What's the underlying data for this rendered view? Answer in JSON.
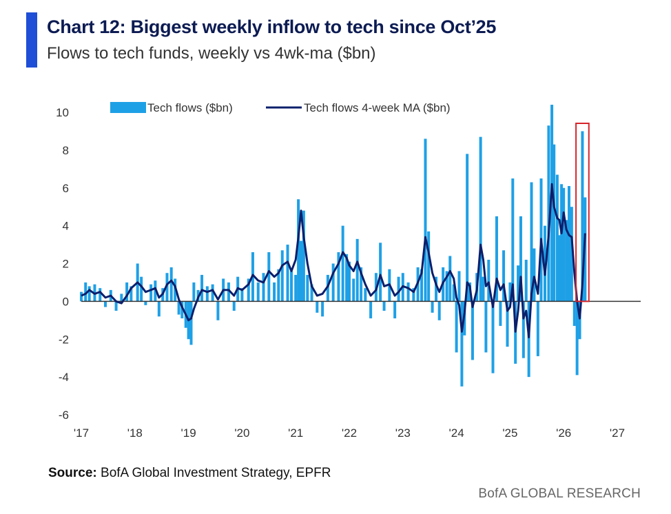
{
  "header": {
    "title": "Chart 12: Biggest weekly inflow to tech since Oct’25",
    "subtitle": "Flows to tech funds, weekly vs 4wk-ma ($bn)"
  },
  "footer": {
    "source_label": "Source:",
    "source_text": "BofA Global Investment Strategy, EPFR",
    "brand": "BofA GLOBAL RESEARCH"
  },
  "colors": {
    "bars": "#1ea0e6",
    "ma_line": "#0b1f6b",
    "highlight": "#d8232a",
    "accent": "#1f4fd6"
  },
  "chart_data": {
    "type": "bar",
    "title": "Chart 12: Biggest weekly inflow to tech since Oct’25",
    "subtitle": "Flows to tech funds, weekly vs 4wk-ma ($bn)",
    "xlabel": "",
    "ylabel": "",
    "ylim": [
      -6,
      10
    ],
    "yticks": [
      10,
      8,
      6,
      4,
      2,
      0,
      -2,
      -4,
      -6
    ],
    "xlim": [
      2017,
      2027
    ],
    "xticks": [
      "'17",
      "'18",
      "'19",
      "'20",
      "'21",
      "'22",
      "'23",
      "'24",
      "'25",
      "'26",
      "'27"
    ],
    "legend": {
      "position": "top-left",
      "entries": [
        "Tech flows ($bn)",
        "Tech flows 4-week MA ($bn)"
      ]
    },
    "grid": false,
    "highlight": {
      "x_start": 2026.23,
      "x_end": 2026.47,
      "label": "Biggest weekly inflow"
    },
    "series": [
      {
        "name": "Tech flows ($bn)",
        "type": "bar",
        "points": [
          [
            2017.0,
            0.5
          ],
          [
            2017.08,
            1.0
          ],
          [
            2017.15,
            0.8
          ],
          [
            2017.25,
            0.9
          ],
          [
            2017.35,
            0.7
          ],
          [
            2017.45,
            -0.3
          ],
          [
            2017.55,
            0.6
          ],
          [
            2017.65,
            -0.5
          ],
          [
            2017.75,
            0.4
          ],
          [
            2017.85,
            1.0
          ],
          [
            2017.93,
            0.8
          ],
          [
            2018.05,
            2.0
          ],
          [
            2018.12,
            1.3
          ],
          [
            2018.2,
            -0.2
          ],
          [
            2018.3,
            0.9
          ],
          [
            2018.38,
            1.1
          ],
          [
            2018.45,
            -0.8
          ],
          [
            2018.52,
            0.7
          ],
          [
            2018.6,
            1.5
          ],
          [
            2018.68,
            1.8
          ],
          [
            2018.75,
            1.2
          ],
          [
            2018.82,
            -0.7
          ],
          [
            2018.88,
            -0.9
          ],
          [
            2018.95,
            -1.4
          ],
          [
            2019.0,
            -2.0
          ],
          [
            2019.05,
            -2.3
          ],
          [
            2019.1,
            1.0
          ],
          [
            2019.18,
            0.6
          ],
          [
            2019.25,
            1.4
          ],
          [
            2019.35,
            0.8
          ],
          [
            2019.45,
            0.9
          ],
          [
            2019.55,
            -1.0
          ],
          [
            2019.65,
            1.2
          ],
          [
            2019.75,
            1.0
          ],
          [
            2019.85,
            -0.5
          ],
          [
            2019.92,
            1.3
          ],
          [
            2020.0,
            0.7
          ],
          [
            2020.12,
            1.2
          ],
          [
            2020.2,
            2.6
          ],
          [
            2020.3,
            1.0
          ],
          [
            2020.4,
            1.5
          ],
          [
            2020.5,
            2.6
          ],
          [
            2020.6,
            1.0
          ],
          [
            2020.68,
            1.7
          ],
          [
            2020.75,
            2.7
          ],
          [
            2020.85,
            3.0
          ],
          [
            2020.92,
            1.6
          ],
          [
            2021.0,
            1.4
          ],
          [
            2021.05,
            5.4
          ],
          [
            2021.1,
            3.2
          ],
          [
            2021.15,
            4.8
          ],
          [
            2021.22,
            1.4
          ],
          [
            2021.3,
            0.9
          ],
          [
            2021.4,
            -0.6
          ],
          [
            2021.5,
            -0.8
          ],
          [
            2021.6,
            1.4
          ],
          [
            2021.7,
            2.0
          ],
          [
            2021.8,
            2.6
          ],
          [
            2021.88,
            4.0
          ],
          [
            2021.95,
            2.5
          ],
          [
            2022.0,
            2.1
          ],
          [
            2022.08,
            1.2
          ],
          [
            2022.15,
            3.3
          ],
          [
            2022.22,
            1.8
          ],
          [
            2022.3,
            0.7
          ],
          [
            2022.4,
            -0.9
          ],
          [
            2022.5,
            1.5
          ],
          [
            2022.58,
            3.1
          ],
          [
            2022.65,
            -0.5
          ],
          [
            2022.75,
            1.7
          ],
          [
            2022.85,
            -0.9
          ],
          [
            2022.92,
            1.3
          ],
          [
            2023.0,
            1.5
          ],
          [
            2023.1,
            1.0
          ],
          [
            2023.2,
            0.7
          ],
          [
            2023.28,
            1.8
          ],
          [
            2023.35,
            1.7
          ],
          [
            2023.42,
            8.6
          ],
          [
            2023.48,
            3.7
          ],
          [
            2023.55,
            -0.6
          ],
          [
            2023.62,
            1.3
          ],
          [
            2023.68,
            -1.0
          ],
          [
            2023.75,
            1.8
          ],
          [
            2023.82,
            1.6
          ],
          [
            2023.88,
            2.4
          ],
          [
            2023.95,
            0.9
          ],
          [
            2024.0,
            -2.7
          ],
          [
            2024.05,
            1.6
          ],
          [
            2024.1,
            -4.5
          ],
          [
            2024.15,
            -1.8
          ],
          [
            2024.2,
            7.8
          ],
          [
            2024.25,
            1.0
          ],
          [
            2024.3,
            -3.1
          ],
          [
            2024.38,
            1.5
          ],
          [
            2024.45,
            8.7
          ],
          [
            2024.5,
            1.3
          ],
          [
            2024.55,
            -2.7
          ],
          [
            2024.6,
            2.2
          ],
          [
            2024.68,
            -3.8
          ],
          [
            2024.75,
            4.5
          ],
          [
            2024.82,
            -1.3
          ],
          [
            2024.88,
            2.7
          ],
          [
            2024.95,
            -2.4
          ],
          [
            2025.0,
            1.0
          ],
          [
            2025.05,
            6.5
          ],
          [
            2025.1,
            -3.3
          ],
          [
            2025.15,
            1.9
          ],
          [
            2025.2,
            4.5
          ],
          [
            2025.25,
            -3.0
          ],
          [
            2025.3,
            2.2
          ],
          [
            2025.35,
            -4.0
          ],
          [
            2025.4,
            6.3
          ],
          [
            2025.45,
            2.8
          ],
          [
            2025.52,
            -2.9
          ],
          [
            2025.58,
            6.5
          ],
          [
            2025.65,
            4.0
          ],
          [
            2025.72,
            9.3
          ],
          [
            2025.78,
            10.4
          ],
          [
            2025.82,
            8.3
          ],
          [
            2025.88,
            6.7
          ],
          [
            2025.92,
            3.5
          ],
          [
            2025.96,
            6.2
          ],
          [
            2026.0,
            6.0
          ],
          [
            2026.05,
            4.3
          ],
          [
            2026.1,
            6.1
          ],
          [
            2026.15,
            5.0
          ],
          [
            2026.2,
            -1.3
          ],
          [
            2026.25,
            -3.9
          ],
          [
            2026.3,
            -2.0
          ],
          [
            2026.35,
            9.0
          ],
          [
            2026.4,
            5.5
          ]
        ]
      },
      {
        "name": "Tech flows 4-week MA ($bn)",
        "type": "line",
        "points": [
          [
            2017.0,
            0.3
          ],
          [
            2017.08,
            0.4
          ],
          [
            2017.15,
            0.6
          ],
          [
            2017.25,
            0.4
          ],
          [
            2017.35,
            0.5
          ],
          [
            2017.45,
            0.2
          ],
          [
            2017.55,
            0.3
          ],
          [
            2017.65,
            0.0
          ],
          [
            2017.75,
            -0.1
          ],
          [
            2017.85,
            0.3
          ],
          [
            2017.93,
            0.7
          ],
          [
            2018.05,
            1.0
          ],
          [
            2018.12,
            0.8
          ],
          [
            2018.2,
            0.5
          ],
          [
            2018.3,
            0.6
          ],
          [
            2018.38,
            0.7
          ],
          [
            2018.45,
            0.2
          ],
          [
            2018.52,
            0.4
          ],
          [
            2018.6,
            0.9
          ],
          [
            2018.68,
            1.1
          ],
          [
            2018.75,
            0.8
          ],
          [
            2018.82,
            0.1
          ],
          [
            2018.88,
            -0.3
          ],
          [
            2018.95,
            -0.7
          ],
          [
            2019.0,
            -1.0
          ],
          [
            2019.05,
            -0.9
          ],
          [
            2019.1,
            -0.4
          ],
          [
            2019.18,
            0.2
          ],
          [
            2019.25,
            0.6
          ],
          [
            2019.35,
            0.5
          ],
          [
            2019.45,
            0.6
          ],
          [
            2019.55,
            0.1
          ],
          [
            2019.65,
            0.6
          ],
          [
            2019.75,
            0.6
          ],
          [
            2019.85,
            0.3
          ],
          [
            2019.92,
            0.7
          ],
          [
            2020.0,
            0.6
          ],
          [
            2020.12,
            0.9
          ],
          [
            2020.2,
            1.4
          ],
          [
            2020.3,
            1.1
          ],
          [
            2020.4,
            1.0
          ],
          [
            2020.5,
            1.6
          ],
          [
            2020.6,
            1.3
          ],
          [
            2020.68,
            1.5
          ],
          [
            2020.75,
            1.9
          ],
          [
            2020.85,
            2.1
          ],
          [
            2020.92,
            1.6
          ],
          [
            2021.0,
            2.2
          ],
          [
            2021.05,
            3.4
          ],
          [
            2021.1,
            4.8
          ],
          [
            2021.15,
            3.4
          ],
          [
            2021.22,
            2.0
          ],
          [
            2021.3,
            0.8
          ],
          [
            2021.4,
            0.3
          ],
          [
            2021.5,
            0.4
          ],
          [
            2021.6,
            0.8
          ],
          [
            2021.7,
            1.5
          ],
          [
            2021.8,
            2.0
          ],
          [
            2021.88,
            2.6
          ],
          [
            2021.95,
            2.3
          ],
          [
            2022.0,
            1.9
          ],
          [
            2022.08,
            1.6
          ],
          [
            2022.15,
            2.1
          ],
          [
            2022.22,
            1.5
          ],
          [
            2022.3,
            0.9
          ],
          [
            2022.4,
            0.3
          ],
          [
            2022.5,
            0.6
          ],
          [
            2022.58,
            1.4
          ],
          [
            2022.65,
            0.8
          ],
          [
            2022.75,
            0.9
          ],
          [
            2022.85,
            0.3
          ],
          [
            2022.92,
            0.5
          ],
          [
            2023.0,
            0.8
          ],
          [
            2023.1,
            0.7
          ],
          [
            2023.2,
            0.5
          ],
          [
            2023.28,
            1.0
          ],
          [
            2023.35,
            1.5
          ],
          [
            2023.42,
            3.4
          ],
          [
            2023.48,
            2.6
          ],
          [
            2023.55,
            1.5
          ],
          [
            2023.62,
            0.9
          ],
          [
            2023.68,
            0.5
          ],
          [
            2023.75,
            1.0
          ],
          [
            2023.82,
            1.3
          ],
          [
            2023.88,
            1.6
          ],
          [
            2023.95,
            1.2
          ],
          [
            2024.0,
            0.2
          ],
          [
            2024.05,
            -0.2
          ],
          [
            2024.1,
            -1.6
          ],
          [
            2024.15,
            -0.6
          ],
          [
            2024.2,
            1.0
          ],
          [
            2024.25,
            0.8
          ],
          [
            2024.3,
            -0.3
          ],
          [
            2024.38,
            0.6
          ],
          [
            2024.45,
            3.0
          ],
          [
            2024.5,
            2.2
          ],
          [
            2024.55,
            0.8
          ],
          [
            2024.6,
            1.0
          ],
          [
            2024.68,
            -0.3
          ],
          [
            2024.75,
            1.2
          ],
          [
            2024.82,
            0.6
          ],
          [
            2024.88,
            0.9
          ],
          [
            2024.95,
            -0.5
          ],
          [
            2025.0,
            -0.3
          ],
          [
            2025.05,
            0.9
          ],
          [
            2025.1,
            -1.6
          ],
          [
            2025.15,
            -0.5
          ],
          [
            2025.2,
            1.3
          ],
          [
            2025.25,
            -0.9
          ],
          [
            2025.3,
            -0.5
          ],
          [
            2025.35,
            -1.9
          ],
          [
            2025.4,
            0.4
          ],
          [
            2025.45,
            1.3
          ],
          [
            2025.52,
            0.4
          ],
          [
            2025.58,
            3.3
          ],
          [
            2025.65,
            1.4
          ],
          [
            2025.72,
            3.5
          ],
          [
            2025.78,
            6.2
          ],
          [
            2025.82,
            5.0
          ],
          [
            2025.88,
            4.4
          ],
          [
            2025.92,
            4.3
          ],
          [
            2025.96,
            3.6
          ],
          [
            2026.0,
            4.7
          ],
          [
            2026.05,
            3.8
          ],
          [
            2026.1,
            3.5
          ],
          [
            2026.15,
            3.4
          ],
          [
            2026.2,
            1.5
          ],
          [
            2026.25,
            0.0
          ],
          [
            2026.3,
            -0.9
          ],
          [
            2026.35,
            0.9
          ],
          [
            2026.4,
            3.6
          ]
        ]
      }
    ]
  }
}
